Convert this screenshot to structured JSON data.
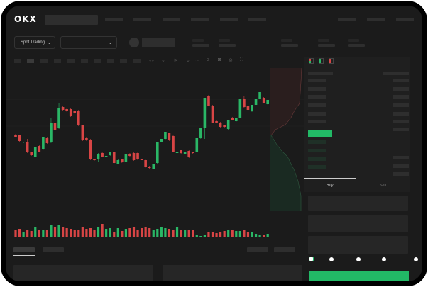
{
  "header": {
    "brand": "OKX"
  },
  "controls": {
    "market_select": "Spot Trading",
    "pair_select": ""
  },
  "trade_panel": {
    "tabs": [
      "Buy",
      "Sell"
    ],
    "active_tab": "Buy",
    "leverage_slider_value": 0,
    "leverage_steps": 5
  },
  "colors": {
    "up": "#2ab766",
    "down": "#d84545",
    "background": "#1b1b1b",
    "accent": "#22b966"
  },
  "chart_data": {
    "type": "candlestick",
    "title": "",
    "grid": true,
    "candles": [
      [
        68,
        69,
        64,
        65
      ],
      [
        68,
        68,
        58,
        59
      ],
      [
        57,
        58,
        56,
        58
      ],
      [
        58,
        62,
        42,
        44
      ],
      [
        43,
        44,
        38,
        39
      ],
      [
        37,
        51,
        36,
        50
      ],
      [
        52,
        53,
        43,
        44
      ],
      [
        48,
        65,
        47,
        64
      ],
      [
        63,
        64,
        55,
        56
      ],
      [
        57,
        92,
        56,
        85
      ],
      [
        84,
        85,
        74,
        75
      ],
      [
        77,
        113,
        76,
        105
      ],
      [
        107,
        108,
        102,
        103
      ],
      [
        104,
        105,
        100,
        101
      ],
      [
        104,
        105,
        93,
        94
      ],
      [
        101,
        102,
        97,
        98
      ],
      [
        102,
        103,
        80,
        81
      ],
      [
        81,
        82,
        59,
        60
      ],
      [
        63,
        64,
        59,
        60
      ],
      [
        61,
        62,
        32,
        33
      ],
      [
        33,
        34,
        31,
        32
      ],
      [
        33,
        42,
        30,
        41
      ],
      [
        42,
        43,
        36,
        37
      ],
      [
        37,
        38,
        34,
        38
      ],
      [
        39,
        44,
        38,
        43
      ],
      [
        43,
        44,
        27,
        28
      ],
      [
        27,
        33,
        26,
        32
      ],
      [
        33,
        34,
        28,
        29
      ],
      [
        30,
        40,
        29,
        40
      ],
      [
        41,
        42,
        37,
        38
      ],
      [
        42,
        43,
        31,
        32
      ],
      [
        42,
        43,
        32,
        33
      ],
      [
        33,
        34,
        32,
        32
      ],
      [
        32,
        33,
        21,
        22
      ],
      [
        23,
        24,
        20,
        21
      ],
      [
        20,
        27,
        19,
        27
      ],
      [
        28,
        57,
        27,
        57
      ],
      [
        58,
        62,
        57,
        62
      ],
      [
        62,
        72,
        61,
        72
      ],
      [
        70,
        71,
        59,
        60
      ],
      [
        66,
        67,
        43,
        44
      ],
      [
        42,
        44,
        40,
        43
      ],
      [
        46,
        47,
        41,
        42
      ],
      [
        40,
        44,
        39,
        44
      ],
      [
        45,
        46,
        35,
        36
      ],
      [
        43,
        44,
        41,
        42
      ],
      [
        43,
        63,
        42,
        63
      ],
      [
        63,
        78,
        62,
        78
      ],
      [
        78,
        120,
        62,
        120
      ],
      [
        122,
        124,
        108,
        109
      ],
      [
        109,
        110,
        84,
        85
      ],
      [
        87,
        88,
        84,
        85
      ],
      [
        85,
        86,
        78,
        79
      ],
      [
        81,
        82,
        78,
        79
      ],
      [
        76,
        89,
        75,
        89
      ],
      [
        92,
        93,
        88,
        89
      ],
      [
        87,
        92,
        86,
        92
      ],
      [
        92,
        118,
        91,
        118
      ],
      [
        119,
        122,
        106,
        107
      ],
      [
        108,
        109,
        102,
        103
      ],
      [
        101,
        110,
        100,
        110
      ],
      [
        110,
        119,
        109,
        119
      ],
      [
        119,
        128,
        118,
        128
      ],
      [
        120,
        121,
        112,
        113
      ],
      [
        111,
        117,
        110,
        117
      ]
    ],
    "volume": [
      10,
      11,
      7,
      10,
      8,
      13,
      10,
      9,
      10,
      17,
      14,
      16,
      14,
      12,
      11,
      9,
      10,
      14,
      11,
      12,
      10,
      13,
      18,
      11,
      12,
      7,
      12,
      8,
      11,
      12,
      13,
      9,
      12,
      13,
      12,
      10,
      11,
      13,
      12,
      11,
      10,
      14,
      9,
      10,
      9,
      10,
      3,
      1,
      3,
      6,
      6,
      5,
      7,
      8,
      9,
      9,
      8,
      8,
      10,
      7,
      6,
      4,
      2,
      2,
      4
    ]
  }
}
